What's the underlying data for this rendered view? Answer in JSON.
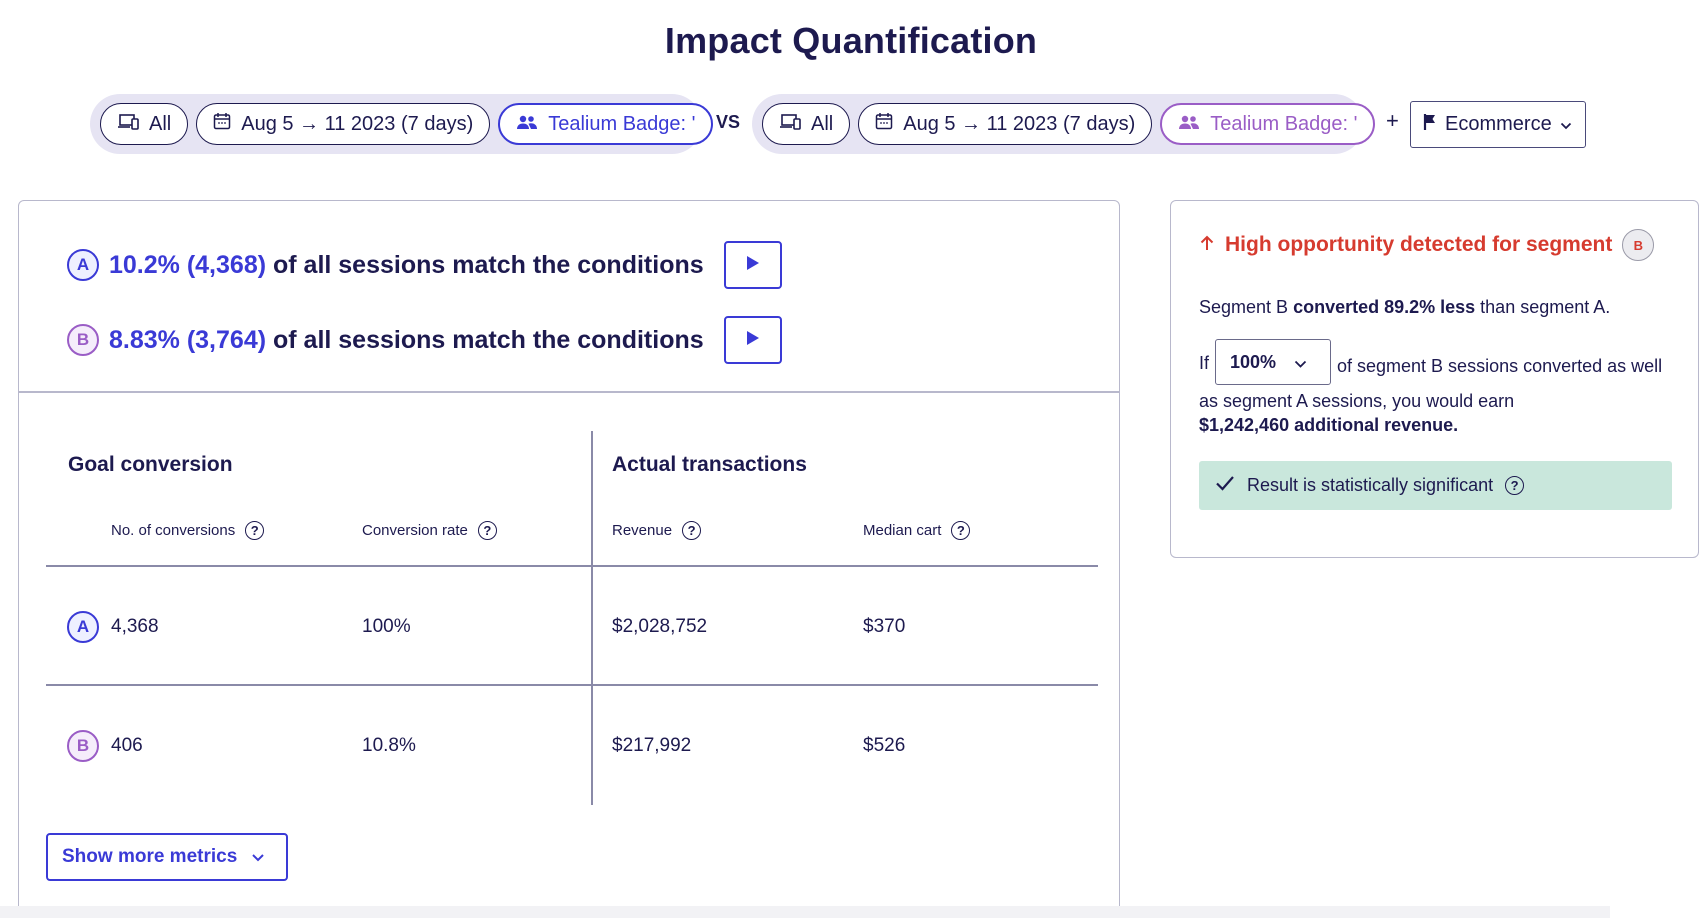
{
  "page_title": "Impact Quantification",
  "segment_a_filters": {
    "device": "All",
    "date_range": "Aug 5 → 11 2023 (7 days)",
    "segment": "Tealium Badge: '"
  },
  "vs_label": "VS",
  "segment_b_filters": {
    "device": "All",
    "date_range": "Aug 5 → 11 2023 (7 days)",
    "segment": "Tealium Badge: '"
  },
  "add_label": "+",
  "goal_dropdown": {
    "label": "Ecommerce"
  },
  "matches": {
    "a": {
      "badge": "A",
      "highlight": "10.2% (4,368)",
      "text": "of all sessions match the conditions"
    },
    "b": {
      "badge": "B",
      "highlight": "8.83% (3,764)",
      "text": "of all sessions match the conditions"
    }
  },
  "table": {
    "goal_conversion_title": "Goal conversion",
    "actual_transactions_title": "Actual transactions",
    "columns": [
      "No. of conversions",
      "Conversion rate",
      "Revenue",
      "Median cart"
    ],
    "rows": [
      {
        "segment": "A",
        "conversions": "4,368",
        "rate": "100%",
        "revenue": "$2,028,752",
        "median_cart": "$370"
      },
      {
        "segment": "B",
        "conversions": "406",
        "rate": "10.8%",
        "revenue": "$217,992",
        "median_cart": "$526"
      }
    ]
  },
  "show_more_label": "Show more metrics",
  "opportunity": {
    "heading": "High opportunity detected for segment",
    "badge": "B",
    "summary_pre": "Segment B ",
    "summary_bold": "converted 89.2% less",
    "summary_post": " than segment A.",
    "if_label": "If",
    "select_value": "100%",
    "detail_text": "of segment B sessions converted as well as segment A sessions, you would earn",
    "revenue_bold": "$1,242,460 additional revenue.",
    "significance": "Result is statistically significant"
  },
  "colors": {
    "primary_blue": "#3a3ad6",
    "segment_b_purple": "#9a5dc6",
    "alert_red": "#d63b2f",
    "success_green_bg": "#c9e7dc",
    "text_navy": "#1d1a4f"
  }
}
